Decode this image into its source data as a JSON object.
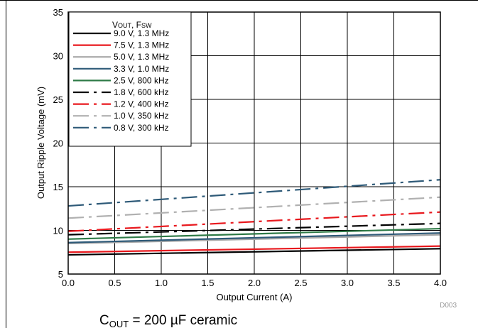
{
  "chart_data": {
    "type": "line",
    "xlabel": "Output Current (A)",
    "ylabel": "Output Ripple Voltage (mV)",
    "xlim": [
      0,
      4
    ],
    "ylim": [
      5,
      35
    ],
    "xticks": [
      "0.0",
      "0.5",
      "1.0",
      "1.5",
      "2.0",
      "2.5",
      "3.0",
      "3.5",
      "4.0"
    ],
    "yticks": [
      "5",
      "10",
      "15",
      "20",
      "25",
      "30",
      "35"
    ],
    "grid": true,
    "legend": {
      "position": "top-left",
      "title_main": "V",
      "title_sub1": "OUT",
      "title_sep": ", F",
      "title_sub2": "SW"
    },
    "x": [
      0,
      4
    ],
    "series": [
      {
        "name": "9.0 V, 1.3 MHz",
        "color": "#000000",
        "dash": "solid",
        "values": [
          7.2,
          7.9
        ]
      },
      {
        "name": "7.5 V, 1.3 MHz",
        "color": "#e8191e",
        "dash": "solid",
        "values": [
          7.5,
          8.2
        ]
      },
      {
        "name": "5.0 V, 1.3 MHz",
        "color": "#a8a8a8",
        "dash": "solid",
        "values": [
          8.5,
          9.5
        ]
      },
      {
        "name": "3.3 V, 1.0 MHz",
        "color": "#2e5a78",
        "dash": "solid",
        "values": [
          8.6,
          9.7
        ]
      },
      {
        "name": "2.5 V, 800 kHz",
        "color": "#2e7a46",
        "dash": "solid",
        "values": [
          9.0,
          10.2
        ]
      },
      {
        "name": "1.8 V, 600 kHz",
        "color": "#000000",
        "dash": "dashdot",
        "values": [
          9.5,
          10.8
        ]
      },
      {
        "name": "1.2 V, 400 kHz",
        "color": "#e8191e",
        "dash": "dashdot",
        "values": [
          9.9,
          12.1
        ]
      },
      {
        "name": "1.0 V, 350 kHz",
        "color": "#b0b0b0",
        "dash": "dashdot",
        "values": [
          11.4,
          13.8
        ]
      },
      {
        "name": "0.8 V, 300 kHz",
        "color": "#2e5a78",
        "dash": "dashdot",
        "values": [
          12.8,
          15.8
        ]
      }
    ],
    "figure_id": "D003",
    "caption_main": "C",
    "caption_sub": "OUT",
    "caption_rest": " = 200 µF ceramic"
  }
}
